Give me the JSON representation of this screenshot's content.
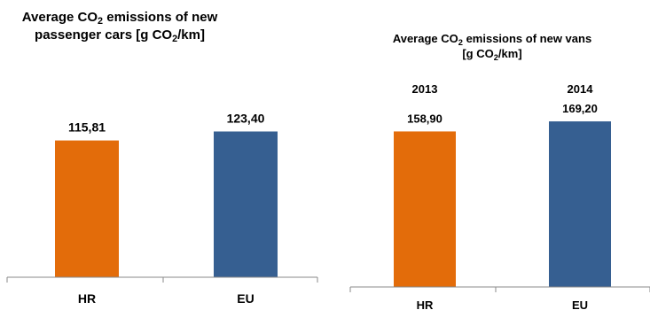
{
  "chart_data": [
    {
      "type": "bar",
      "title_parts": [
        "Average CO",
        "2",
        " emissions of new",
        "passenger cars [g CO",
        "2",
        "/km]"
      ],
      "categories": [
        "HR",
        "EU"
      ],
      "values": [
        115.81,
        123.4
      ],
      "value_labels": [
        "115,81",
        "123,40"
      ],
      "ylim": [
        0,
        150
      ],
      "grid": false,
      "colors": [
        "#E36C0A",
        "#365F91"
      ]
    },
    {
      "type": "bar",
      "title_parts": [
        "Average CO",
        "2",
        " emissions of new vans",
        "[g CO",
        "2",
        "/km]"
      ],
      "categories": [
        "HR",
        "EU"
      ],
      "year_labels": [
        "2013",
        "2014"
      ],
      "values": [
        158.9,
        169.2
      ],
      "value_labels": [
        "158,90",
        "169,20"
      ],
      "ylim": [
        0,
        200
      ],
      "grid": false,
      "colors": [
        "#E36C0A",
        "#365F91"
      ]
    }
  ]
}
